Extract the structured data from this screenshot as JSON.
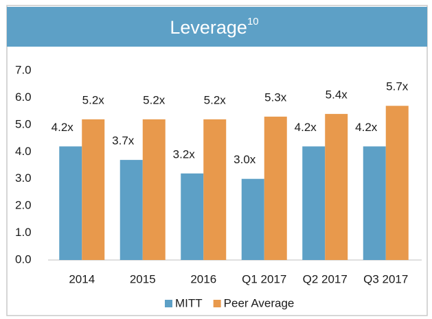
{
  "chart_data": {
    "type": "bar",
    "title": "Leverage",
    "title_superscript": "10",
    "categories": [
      "2014",
      "2015",
      "2016",
      "Q1 2017",
      "Q2 2017",
      "Q3 2017"
    ],
    "series": [
      {
        "name": "MITT",
        "color": "#5da0c6",
        "values": [
          4.2,
          3.7,
          3.2,
          3.0,
          4.2,
          4.2
        ],
        "value_labels": [
          "4.2x",
          "3.7x",
          "3.2x",
          "3.0x",
          "4.2x",
          "4.2x"
        ]
      },
      {
        "name": "Peer Average",
        "color": "#e8994c",
        "values": [
          5.2,
          5.2,
          5.2,
          5.3,
          5.4,
          5.7
        ],
        "value_labels": [
          "5.2x",
          "5.2x",
          "5.2x",
          "5.3x",
          "5.4x",
          "5.7x"
        ]
      }
    ],
    "ylim": [
      0,
      7
    ],
    "yticks": [
      {
        "value": 0,
        "label": "0.0"
      },
      {
        "value": 1,
        "label": "1.0"
      },
      {
        "value": 2,
        "label": "2.0"
      },
      {
        "value": 3,
        "label": "3.0"
      },
      {
        "value": 4,
        "label": "4.0"
      },
      {
        "value": 5,
        "label": "5.0"
      },
      {
        "value": 6,
        "label": "6.0"
      },
      {
        "value": 7,
        "label": "7.0"
      }
    ],
    "legend": "bottom"
  }
}
